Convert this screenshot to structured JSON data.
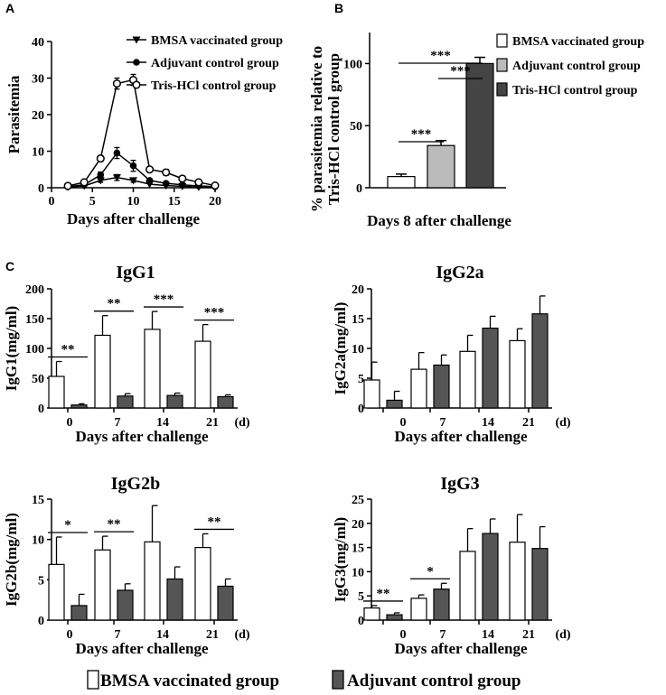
{
  "panel_labels": [
    "A",
    "B",
    "C"
  ],
  "unit_suffix": "(d)",
  "bottom_legend": [
    {
      "label": "BMSA vaccinated group",
      "color": "#ffffff"
    },
    {
      "label": "Adjuvant control group",
      "color": "#555555"
    }
  ],
  "chart_data": [
    {
      "id": "A",
      "type": "line",
      "xlabel": "Days after challenge",
      "ylabel": "Parasitemia",
      "xlim": [
        0,
        20
      ],
      "ylim": [
        0,
        40
      ],
      "xticks": [
        0,
        5,
        10,
        15,
        20
      ],
      "yticks": [
        0,
        10,
        20,
        30,
        40
      ],
      "legend_position": "top-right",
      "series": [
        {
          "name": "BMSA vaccinated group",
          "marker": "triangle-down",
          "x": [
            2,
            4,
            6,
            8,
            10,
            12,
            14,
            16,
            18,
            20
          ],
          "y": [
            0.2,
            0.5,
            2.0,
            2.8,
            2.0,
            1.0,
            0.6,
            0.4,
            0.2,
            0.1
          ],
          "err": [
            0.2,
            0.3,
            0.5,
            0.8,
            0.5,
            0.3,
            0.2,
            0.2,
            0.1,
            0.1
          ]
        },
        {
          "name": "Adjuvant control group",
          "marker": "filled-circle",
          "x": [
            2,
            4,
            6,
            8,
            10,
            12,
            14,
            16,
            18,
            20
          ],
          "y": [
            0.3,
            0.8,
            3.5,
            9.5,
            6.0,
            2.0,
            1.2,
            0.8,
            0.5,
            0.3
          ],
          "err": [
            0.2,
            0.4,
            0.8,
            1.5,
            1.5,
            0.5,
            0.3,
            0.2,
            0.2,
            0.1
          ]
        },
        {
          "name": "Tris-HCl control group",
          "marker": "open-circle",
          "x": [
            2,
            4,
            6,
            8,
            10,
            12,
            14,
            16,
            18,
            20
          ],
          "y": [
            0.5,
            1.5,
            8.0,
            28.5,
            29.5,
            5.0,
            4.2,
            2.5,
            1.5,
            0.6
          ],
          "err": [
            0.2,
            0.4,
            0.8,
            1.5,
            1.5,
            0.5,
            0.8,
            0.5,
            0.3,
            0.2
          ]
        }
      ]
    },
    {
      "id": "B",
      "type": "bar",
      "xlabel": "Days 8 after challenge",
      "ylabel_lines": [
        "% parasitemia relative to",
        "Tris-HCl control group"
      ],
      "ylim": [
        0,
        125
      ],
      "yticks": [
        0,
        50,
        100
      ],
      "legend_position": "top-right",
      "categories": [
        "BMSA vaccinated group",
        "Adjuvant control group",
        "Tris-HCl control group"
      ],
      "values": [
        9,
        34,
        100
      ],
      "errors": [
        2,
        4,
        5
      ],
      "colors": [
        "#ffffff",
        "#bbbbbb",
        "#444444"
      ],
      "significance": [
        {
          "from": 0,
          "to": 2,
          "label": "***"
        },
        {
          "from": 1,
          "to": 2,
          "label": "***"
        },
        {
          "from": 0,
          "to": 1,
          "label": "***"
        }
      ]
    },
    {
      "id": "IgG1",
      "type": "bar",
      "title": "IgG1",
      "ylabel": "IgG1(mg/ml)",
      "xlabel": "Days after challenge",
      "categories": [
        "0",
        "7",
        "14",
        "21"
      ],
      "ylim": [
        0,
        200
      ],
      "yticks": [
        0,
        50,
        100,
        150,
        200
      ],
      "series": [
        {
          "name": "BMSA vaccinated group",
          "values": [
            53,
            122,
            132,
            112
          ],
          "errors": [
            25,
            33,
            30,
            28
          ]
        },
        {
          "name": "Adjuvant control group",
          "values": [
            5,
            20,
            21,
            19
          ],
          "errors": [
            2,
            4,
            4,
            3
          ]
        }
      ],
      "significance": [
        "**",
        "**",
        "***",
        "***"
      ]
    },
    {
      "id": "IgG2a",
      "type": "bar",
      "title": "IgG2a",
      "ylabel": "IgG2a(mg/ml)",
      "xlabel": "Days after challenge",
      "categories": [
        "0",
        "7",
        "14",
        "21"
      ],
      "ylim": [
        0,
        20
      ],
      "yticks": [
        0,
        5,
        10,
        15,
        20
      ],
      "series": [
        {
          "name": "BMSA vaccinated group",
          "values": [
            4.7,
            6.5,
            9.5,
            11.3
          ],
          "errors": [
            3.0,
            2.8,
            2.7,
            2.0
          ]
        },
        {
          "name": "Adjuvant control group",
          "values": [
            1.3,
            7.2,
            13.4,
            15.8
          ],
          "errors": [
            1.5,
            1.7,
            2.0,
            3.0
          ]
        }
      ],
      "significance": [
        "",
        "",
        "",
        ""
      ]
    },
    {
      "id": "IgG2b",
      "type": "bar",
      "title": "IgG2b",
      "ylabel": "IgG2b(mg/ml)",
      "xlabel": "Days after challenge",
      "categories": [
        "0",
        "7",
        "14",
        "21"
      ],
      "ylim": [
        0,
        15
      ],
      "yticks": [
        0,
        5,
        10,
        15
      ],
      "series": [
        {
          "name": "BMSA vaccinated group",
          "values": [
            6.9,
            8.7,
            9.7,
            9.0
          ],
          "errors": [
            3.4,
            1.7,
            4.5,
            1.7
          ]
        },
        {
          "name": "Adjuvant control group",
          "values": [
            1.8,
            3.7,
            5.1,
            4.2
          ],
          "errors": [
            1.4,
            0.8,
            1.5,
            0.9
          ]
        }
      ],
      "significance": [
        "*",
        "**",
        "",
        "**"
      ]
    },
    {
      "id": "IgG3",
      "type": "bar",
      "title": "IgG3",
      "ylabel": "IgG3(mg/ml)",
      "xlabel": "Days after challenge",
      "categories": [
        "0",
        "7",
        "14",
        "21"
      ],
      "ylim": [
        0,
        25
      ],
      "yticks": [
        0,
        5,
        10,
        15,
        20,
        25
      ],
      "series": [
        {
          "name": "BMSA vaccinated group",
          "values": [
            2.5,
            4.5,
            14.2,
            16.1
          ],
          "errors": [
            0.5,
            0.7,
            4.7,
            5.7
          ]
        },
        {
          "name": "Adjuvant control group",
          "values": [
            1.1,
            6.4,
            17.9,
            14.8
          ],
          "errors": [
            0.4,
            1.2,
            3.0,
            4.5
          ]
        }
      ],
      "significance": [
        "**",
        "*",
        "",
        ""
      ]
    }
  ]
}
